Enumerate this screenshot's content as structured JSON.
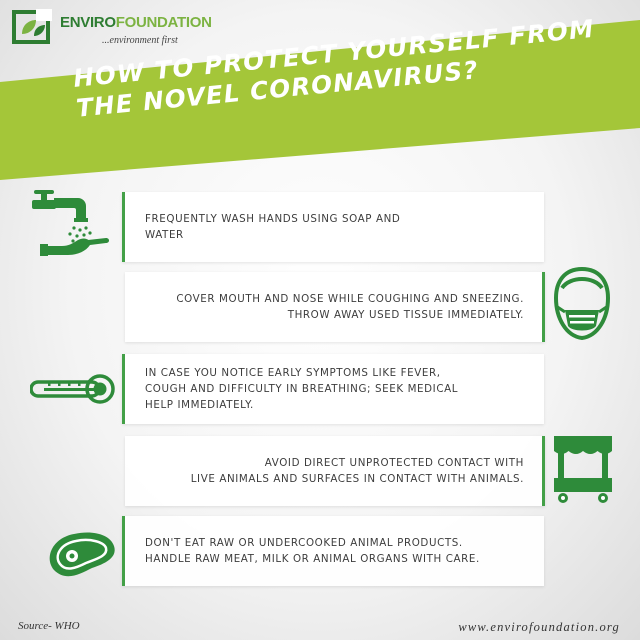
{
  "brand": {
    "name_part1": "ENVIRO",
    "name_part2": "FOUNDATION",
    "tagline": "...environment first"
  },
  "headline": {
    "line1": "HOW TO PROTECT YOURSELF FROM",
    "line2": "THE NOVEL CORONAVIRUS?"
  },
  "tips": [
    {
      "text": "FREQUENTLY WASH HANDS USING SOAP AND\nWATER",
      "icon": "hand-wash-icon"
    },
    {
      "text": "COVER MOUTH AND NOSE WHILE COUGHING AND SNEEZING.\nTHROW AWAY USED TISSUE IMMEDIATELY.",
      "icon": "face-mask-icon"
    },
    {
      "text": "IN CASE YOU NOTICE EARLY SYMPTOMS LIKE FEVER,\nCOUGH AND DIFFICULTY IN BREATHING; SEEK MEDICAL\nHELP IMMEDIATELY.",
      "icon": "thermometer-icon"
    },
    {
      "text": "AVOID DIRECT UNPROTECTED CONTACT WITH\nLIVE ANIMALS AND SURFACES IN CONTACT WITH ANIMALS.",
      "icon": "market-stall-icon"
    },
    {
      "text": "DON'T EAT RAW OR UNDERCOOKED ANIMAL PRODUCTS.\nHANDLE RAW MEAT, MILK OR ANIMAL ORGANS WITH CARE.",
      "icon": "raw-meat-icon"
    }
  ],
  "footer": {
    "source": "Source- WHO",
    "website": "www.envirofoundation.org"
  },
  "colors": {
    "lime_banner": "#a4c639",
    "green_icon": "#2e8b3a",
    "green_border": "#43a047",
    "text": "#3d3d3d"
  }
}
